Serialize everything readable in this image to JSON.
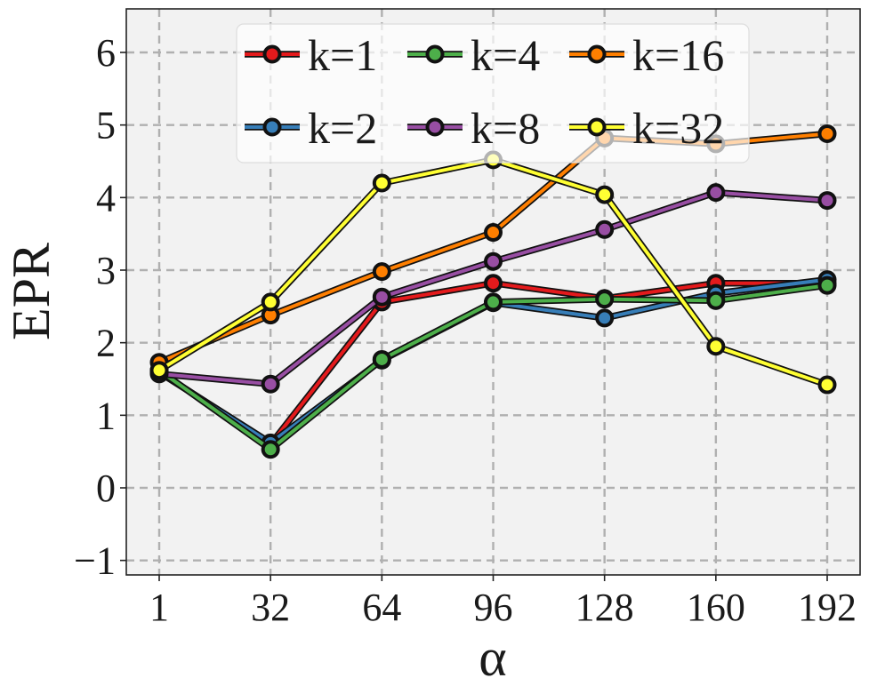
{
  "chart_data": {
    "type": "line",
    "xlabel": "α",
    "ylabel": "EPR",
    "x": [
      1,
      32,
      64,
      96,
      128,
      160,
      192
    ],
    "x_ticks": [
      "1",
      "32",
      "64",
      "96",
      "128",
      "160",
      "192"
    ],
    "y_ticks": [
      "6",
      "5",
      "4",
      "3",
      "2",
      "1",
      "0",
      "−1"
    ],
    "y_tick_values": [
      6,
      5,
      4,
      3,
      2,
      1,
      0,
      -1
    ],
    "ylim": [
      -1.2,
      6.6
    ],
    "grid": true,
    "legend_position": "top",
    "series": [
      {
        "name": "k=1",
        "color": "#e41a1c",
        "values": [
          1.6,
          0.6,
          2.56,
          2.82,
          2.61,
          2.82,
          2.82
        ]
      },
      {
        "name": "k=2",
        "color": "#377eb8",
        "values": [
          1.59,
          0.62,
          1.76,
          2.55,
          2.34,
          2.68,
          2.87
        ]
      },
      {
        "name": "k=4",
        "color": "#4daf4a",
        "values": [
          1.62,
          0.53,
          1.77,
          2.56,
          2.6,
          2.58,
          2.79
        ]
      },
      {
        "name": "k=8",
        "color": "#984ea3",
        "values": [
          1.57,
          1.43,
          2.63,
          3.12,
          3.56,
          4.07,
          3.96
        ]
      },
      {
        "name": "k=16",
        "color": "#ff7f00",
        "values": [
          1.73,
          2.38,
          2.98,
          3.52,
          4.82,
          4.74,
          4.88
        ]
      },
      {
        "name": "k=32",
        "color": "#ffff33",
        "values": [
          1.62,
          2.56,
          4.2,
          4.52,
          4.04,
          1.95,
          1.42
        ]
      }
    ],
    "legend_order": [
      "k=1",
      "k=4",
      "k=16",
      "k=2",
      "k=8",
      "k=32"
    ]
  }
}
